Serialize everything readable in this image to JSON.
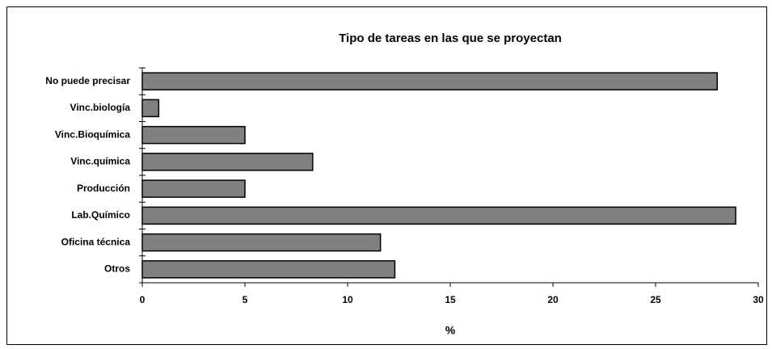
{
  "chart_data": {
    "type": "barh",
    "title": "Tipo de tareas en las que se proyectan",
    "categories": [
      "No puede precisar",
      "Vinc.biología",
      "Vinc.Bioquímica",
      "Vinc.química",
      "Producción",
      "Lab.Químico",
      "Oficina técnica",
      "Otros"
    ],
    "values": [
      28.0,
      0.8,
      5.0,
      8.3,
      5.0,
      28.9,
      11.6,
      12.3
    ],
    "color": "#808080",
    "xlabel": "%",
    "xlim": [
      0,
      30
    ],
    "xticks": [
      0,
      5,
      10,
      15,
      20,
      25,
      30
    ]
  }
}
